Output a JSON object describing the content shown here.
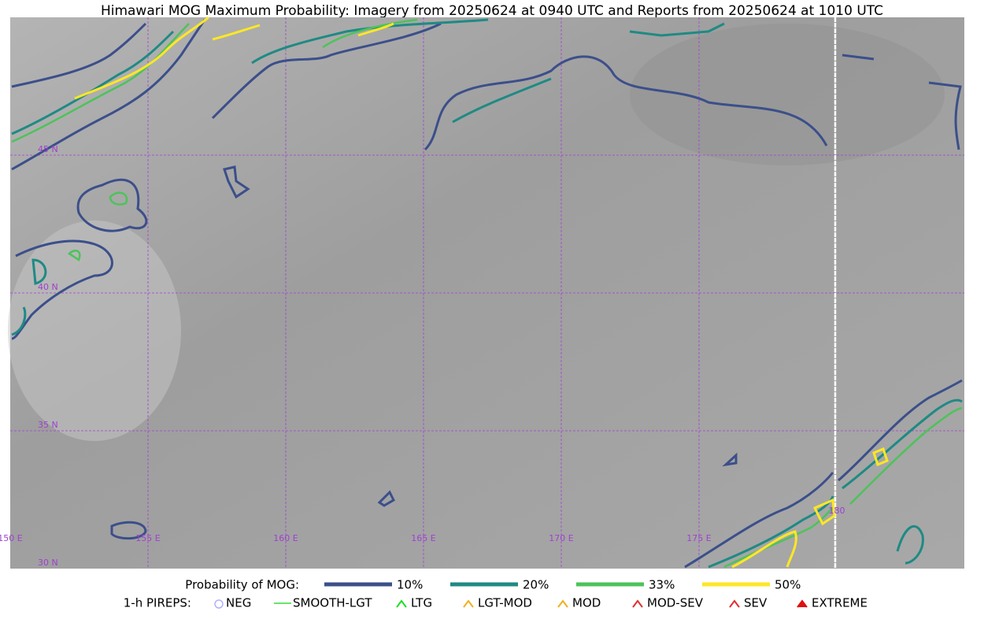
{
  "title": "Himawari MOG Maximum Probability: Imagery from 20250624 at 0940 UTC and Reports from 20250624 at 1010 UTC",
  "grid_labels": {
    "lat": [
      "45 N",
      "40 N",
      "35 N",
      "30 N"
    ],
    "lon": [
      "150 E",
      "155 E",
      "160 E",
      "165 E",
      "170 E",
      "175 E",
      "180"
    ]
  },
  "legend": {
    "probability_label": "Probability of MOG:",
    "levels": [
      {
        "label": "10%",
        "color": "#3b4f8a"
      },
      {
        "label": "20%",
        "color": "#1f8a84"
      },
      {
        "label": "33%",
        "color": "#4cc35a"
      },
      {
        "label": "50%",
        "color": "#fde725"
      }
    ],
    "pireps_label": "1-h PIREPS:",
    "pireps": [
      "NEG",
      "SMOOTH-LGT",
      "LTG",
      "LGT-MOD",
      "MOD",
      "MOD-SEV",
      "SEV",
      "EXTREME"
    ]
  }
}
